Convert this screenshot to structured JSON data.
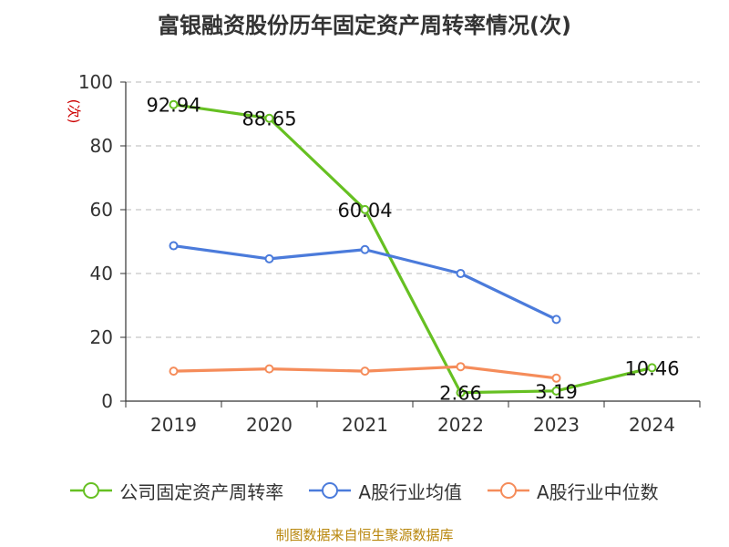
{
  "title": "富银融资股份历年固定资产周转率情况(次)",
  "source_note": "制图数据来自恒生聚源数据库",
  "colors": {
    "company": "#66c022",
    "industry_avg": "#4b7bdb",
    "industry_median": "#f58c5a",
    "unit_label": "#cc0000"
  },
  "chart_data": {
    "type": "line",
    "title": "富银融资股份历年固定资产周转率情况(次)",
    "ylabel": "(次)",
    "ylim": [
      0,
      100
    ],
    "yticks": [
      0,
      20,
      40,
      60,
      80,
      100
    ],
    "grid": "horizontal dashed",
    "legend_position": "bottom",
    "categories": [
      "2019",
      "2020",
      "2021",
      "2022",
      "2023",
      "2024"
    ],
    "series": [
      {
        "name": "公司固定资产周转率",
        "color": "#66c022",
        "values": [
          92.94,
          88.65,
          60.04,
          2.66,
          3.19,
          10.46
        ],
        "labels": [
          "92.94",
          "88.65",
          "60.04",
          "2.66",
          "3.19",
          "10.46"
        ]
      },
      {
        "name": "A股行业均值",
        "color": "#4b7bdb",
        "values": [
          48.7,
          44.6,
          47.5,
          40.0,
          25.6,
          null
        ]
      },
      {
        "name": "A股行业中位数",
        "color": "#f58c5a",
        "values": [
          9.4,
          10.1,
          9.4,
          10.8,
          7.2,
          null
        ]
      }
    ]
  }
}
